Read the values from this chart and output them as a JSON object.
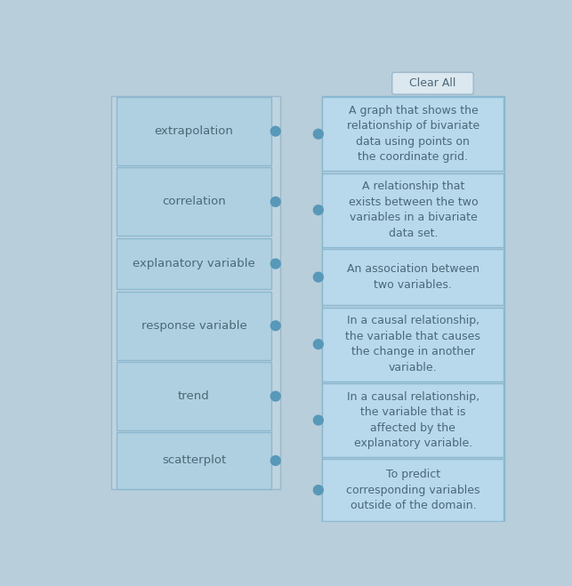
{
  "background_color": "#b8ceda",
  "left_outer_bg": "#c0d4e0",
  "box_fill_left": "#afd0e0",
  "box_fill_right": "#b8d8ec",
  "box_border": "#8ab8d0",
  "left_outer_border": "#9ab8cc",
  "dot_color": "#5898b8",
  "text_color": "#4a6878",
  "clear_all_bg": "#dce8f0",
  "clear_all_border": "#9ab8cc",
  "left_terms": [
    "extrapolation",
    "correlation",
    "explanatory variable",
    "response variable",
    "trend",
    "scatterplot"
  ],
  "right_defs": [
    "A graph that shows the\nrelationship of bivariate\ndata using points on\nthe coordinate grid.",
    "A relationship that\nexists between the two\nvariables in a bivariate\ndata set.",
    "An association between\ntwo variables.",
    "In a causal relationship,\nthe variable that causes\nthe change in another\nvariable.",
    "In a causal relationship,\nthe variable that is\naffected by the\nexplanatory variable.",
    "To predict\ncorresponding variables\noutside of the domain."
  ],
  "fig_width": 6.43,
  "fig_height": 6.59,
  "dpi": 100
}
